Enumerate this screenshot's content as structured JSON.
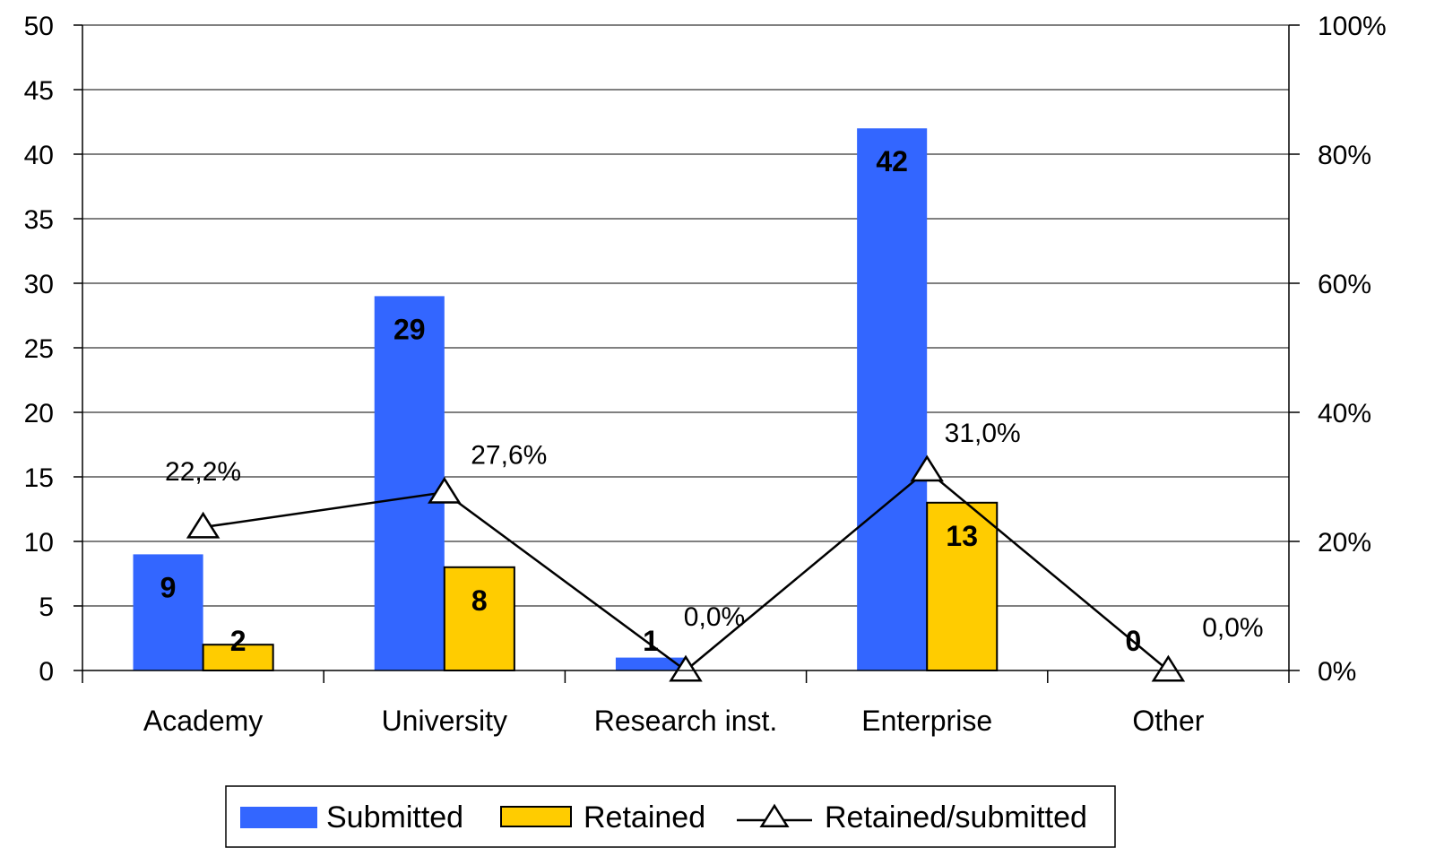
{
  "chart_data": {
    "type": "bar",
    "categories": [
      "Academy",
      "University",
      "Research inst.",
      "Enterprise",
      "Other"
    ],
    "series": [
      {
        "name": "Submitted",
        "type": "bar",
        "axis": "left",
        "color": "#3366FF",
        "values": [
          9,
          29,
          1,
          42,
          0
        ],
        "labels": [
          "9",
          "29",
          "1",
          "42",
          "0"
        ]
      },
      {
        "name": "Retained",
        "type": "bar",
        "axis": "left",
        "color": "#FFCC00",
        "values": [
          2,
          8,
          0,
          13,
          0
        ],
        "labels": [
          "2",
          "8",
          "",
          "13",
          ""
        ]
      },
      {
        "name": "Retained/submitted",
        "type": "line",
        "axis": "right",
        "color": "#000000",
        "marker": "triangle",
        "values": [
          22.2,
          27.6,
          0,
          31.0,
          0
        ],
        "labels": [
          "22,2%",
          "27,6%",
          "0,0%",
          "31,0%",
          "0,0%"
        ]
      }
    ],
    "y_left": {
      "min": 0,
      "max": 50,
      "ticks": [
        "0",
        "5",
        "10",
        "15",
        "20",
        "25",
        "30",
        "35",
        "40",
        "45",
        "50"
      ]
    },
    "y_right": {
      "min": 0,
      "max": 100,
      "ticks": [
        "0%",
        "20%",
        "40%",
        "60%",
        "80%",
        "100%"
      ]
    },
    "grid": true,
    "legend": {
      "position": "bottom",
      "items": [
        "Submitted",
        "Retained",
        "Retained/submitted"
      ]
    }
  }
}
